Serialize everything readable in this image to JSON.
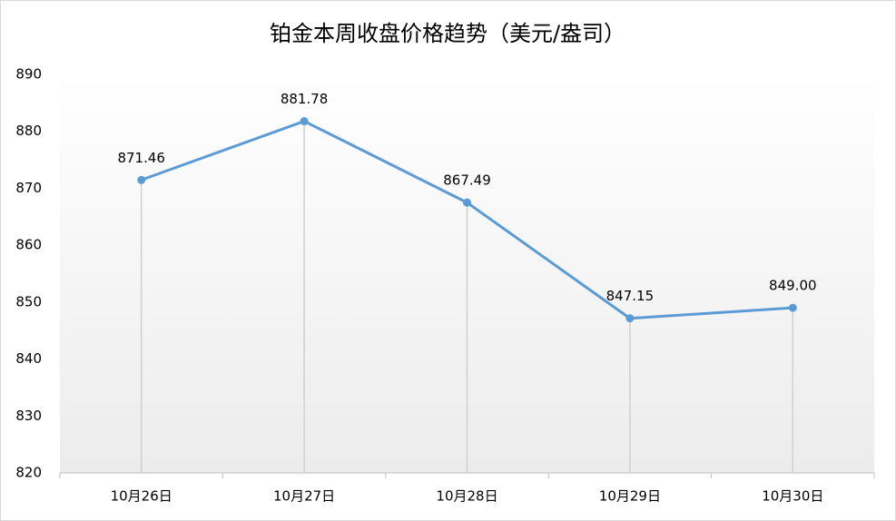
{
  "chart_data": {
    "type": "line",
    "title": "铂金本周收盘价格趋势（美元/盎司）",
    "categories": [
      "10月26日",
      "10月27日",
      "10月28日",
      "10月29日",
      "10月30日"
    ],
    "values": [
      871.46,
      881.78,
      867.49,
      847.15,
      849.0
    ],
    "value_labels": [
      "871.46",
      "881.78",
      "867.49",
      "847.15",
      "849.00"
    ],
    "color": "#5b9bd5",
    "ylim": [
      820,
      890
    ],
    "yticks": [
      820,
      830,
      840,
      850,
      860,
      870,
      880,
      890
    ],
    "drop_lines": true
  }
}
